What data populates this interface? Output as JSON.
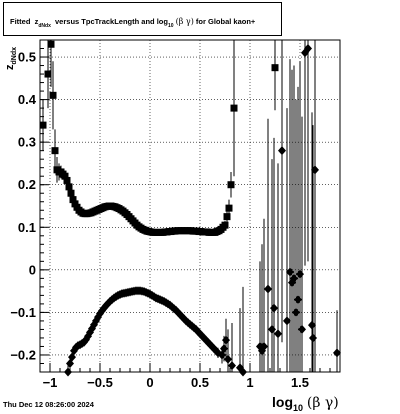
{
  "header": {
    "title_prefix": "Fitted",
    "title_z": "z",
    "title_z_sub": "dNdx",
    "title_mid": "versus TpcTrackLength and log",
    "title_log_sub": "10",
    "title_greek": "(β γ)",
    "title_suffix": "for Global kaon+"
  },
  "footer": {
    "datetime": "Thu Dec 12 08:26:00 2024"
  },
  "axes": {
    "xlabel_main": "log",
    "xlabel_sub": "10",
    "xlabel_greek": "(β γ)",
    "ylabel_main": "z",
    "ylabel_sub": "dNdx"
  },
  "chart_data": {
    "type": "scatter",
    "title": "Fitted z_dNdx versus TpcTrackLength and log10(β γ) for Global kaon+",
    "xlabel": "log10(β γ)",
    "ylabel": "z_dNdx",
    "xlim": [
      -1.1,
      1.9
    ],
    "ylim": [
      -0.24,
      0.54
    ],
    "grid": true,
    "x_ticks": [
      -1,
      -0.5,
      0,
      0.5,
      1,
      1.5
    ],
    "x_tick_labels": [
      "−1",
      "−0.5",
      "0",
      "0.5",
      "1",
      "1.5"
    ],
    "y_ticks": [
      -0.2,
      -0.1,
      0,
      0.1,
      0.2,
      0.3,
      0.4,
      0.5
    ],
    "y_tick_labels": [
      "−0.2",
      "−0.1",
      "0",
      "0.1",
      "0.2",
      "0.3",
      "0.4",
      "0.5"
    ],
    "series": [
      {
        "marker": "square",
        "color": "#000000",
        "points": [
          [
            -1.07,
            0.34,
            0.06
          ],
          [
            -1.02,
            0.46,
            0.08
          ],
          [
            -0.99,
            0.53,
            0.1
          ],
          [
            -0.97,
            0.41,
            0.08
          ],
          [
            -0.95,
            0.28,
            0.05
          ],
          [
            -0.93,
            0.235,
            0.03
          ],
          [
            -0.91,
            0.23,
            0.02
          ],
          [
            -0.89,
            0.23,
            0.015
          ],
          [
            -0.87,
            0.225,
            0.01
          ],
          [
            -0.85,
            0.22,
            0.008
          ],
          [
            -0.83,
            0.21,
            0.006
          ],
          [
            -0.81,
            0.195,
            0.005
          ],
          [
            -0.79,
            0.18,
            0.004
          ],
          [
            -0.77,
            0.165,
            0.004
          ],
          [
            -0.75,
            0.155,
            0.003
          ],
          [
            -0.73,
            0.147,
            0.003
          ],
          [
            -0.71,
            0.14,
            0.003
          ],
          [
            -0.69,
            0.136,
            0.003
          ],
          [
            -0.67,
            0.133,
            0.003
          ],
          [
            -0.65,
            0.132,
            0.003
          ],
          [
            -0.63,
            0.132,
            0.003
          ],
          [
            -0.61,
            0.133,
            0.003
          ],
          [
            -0.59,
            0.134,
            0.003
          ],
          [
            -0.57,
            0.136,
            0.003
          ],
          [
            -0.55,
            0.138,
            0.003
          ],
          [
            -0.53,
            0.14,
            0.003
          ],
          [
            -0.51,
            0.142,
            0.003
          ],
          [
            -0.49,
            0.144,
            0.003
          ],
          [
            -0.47,
            0.146,
            0.003
          ],
          [
            -0.45,
            0.148,
            0.003
          ],
          [
            -0.43,
            0.149,
            0.003
          ],
          [
            -0.41,
            0.15,
            0.003
          ],
          [
            -0.39,
            0.15,
            0.003
          ],
          [
            -0.37,
            0.149,
            0.003
          ],
          [
            -0.35,
            0.148,
            0.003
          ],
          [
            -0.33,
            0.146,
            0.003
          ],
          [
            -0.31,
            0.144,
            0.003
          ],
          [
            -0.29,
            0.141,
            0.003
          ],
          [
            -0.27,
            0.138,
            0.003
          ],
          [
            -0.25,
            0.134,
            0.003
          ],
          [
            -0.23,
            0.13,
            0.003
          ],
          [
            -0.21,
            0.125,
            0.003
          ],
          [
            -0.19,
            0.12,
            0.003
          ],
          [
            -0.17,
            0.115,
            0.003
          ],
          [
            -0.15,
            0.11,
            0.003
          ],
          [
            -0.13,
            0.105,
            0.003
          ],
          [
            -0.11,
            0.101,
            0.003
          ],
          [
            -0.09,
            0.098,
            0.003
          ],
          [
            -0.07,
            0.095,
            0.003
          ],
          [
            -0.05,
            0.093,
            0.003
          ],
          [
            -0.03,
            0.091,
            0.003
          ],
          [
            -0.01,
            0.09,
            0.003
          ],
          [
            0.01,
            0.089,
            0.003
          ],
          [
            0.03,
            0.088,
            0.003
          ],
          [
            0.05,
            0.088,
            0.003
          ],
          [
            0.07,
            0.088,
            0.003
          ],
          [
            0.09,
            0.088,
            0.003
          ],
          [
            0.11,
            0.088,
            0.003
          ],
          [
            0.13,
            0.088,
            0.003
          ],
          [
            0.15,
            0.089,
            0.003
          ],
          [
            0.17,
            0.089,
            0.003
          ],
          [
            0.19,
            0.09,
            0.003
          ],
          [
            0.21,
            0.09,
            0.003
          ],
          [
            0.23,
            0.091,
            0.003
          ],
          [
            0.25,
            0.091,
            0.003
          ],
          [
            0.27,
            0.092,
            0.003
          ],
          [
            0.29,
            0.092,
            0.003
          ],
          [
            0.31,
            0.092,
            0.003
          ],
          [
            0.33,
            0.092,
            0.003
          ],
          [
            0.35,
            0.092,
            0.003
          ],
          [
            0.37,
            0.092,
            0.003
          ],
          [
            0.39,
            0.092,
            0.003
          ],
          [
            0.41,
            0.092,
            0.003
          ],
          [
            0.43,
            0.091,
            0.003
          ],
          [
            0.45,
            0.091,
            0.003
          ],
          [
            0.47,
            0.091,
            0.003
          ],
          [
            0.49,
            0.09,
            0.003
          ],
          [
            0.51,
            0.09,
            0.003
          ],
          [
            0.53,
            0.089,
            0.003
          ],
          [
            0.55,
            0.089,
            0.003
          ],
          [
            0.57,
            0.089,
            0.003
          ],
          [
            0.59,
            0.088,
            0.003
          ],
          [
            0.61,
            0.088,
            0.003
          ],
          [
            0.63,
            0.088,
            0.003
          ],
          [
            0.65,
            0.088,
            0.003
          ],
          [
            0.67,
            0.09,
            0.004
          ],
          [
            0.69,
            0.092,
            0.004
          ],
          [
            0.71,
            0.095,
            0.005
          ],
          [
            0.73,
            0.1,
            0.006
          ],
          [
            0.75,
            0.105,
            0.01
          ],
          [
            0.77,
            0.125,
            0.015
          ],
          [
            0.79,
            0.145,
            0.02
          ],
          [
            0.81,
            0.2,
            0.03
          ],
          [
            0.84,
            0.38,
            0.16
          ],
          [
            1.25,
            0.475,
            0.1
          ]
        ]
      },
      {
        "marker": "diamond",
        "color": "#000000",
        "points": [
          [
            -0.82,
            -0.24,
            0.02
          ],
          [
            -0.8,
            -0.22,
            0.01
          ],
          [
            -0.78,
            -0.205,
            0.008
          ],
          [
            -0.76,
            -0.19,
            0.006
          ],
          [
            -0.74,
            -0.182,
            0.005
          ],
          [
            -0.72,
            -0.178,
            0.004
          ],
          [
            -0.7,
            -0.176,
            0.004
          ],
          [
            -0.68,
            -0.173,
            0.004
          ],
          [
            -0.66,
            -0.17,
            0.004
          ],
          [
            -0.64,
            -0.164,
            0.003
          ],
          [
            -0.62,
            -0.156,
            0.003
          ],
          [
            -0.6,
            -0.147,
            0.003
          ],
          [
            -0.58,
            -0.138,
            0.003
          ],
          [
            -0.56,
            -0.129,
            0.003
          ],
          [
            -0.54,
            -0.12,
            0.003
          ],
          [
            -0.52,
            -0.111,
            0.003
          ],
          [
            -0.5,
            -0.103,
            0.003
          ],
          [
            -0.48,
            -0.096,
            0.003
          ],
          [
            -0.46,
            -0.09,
            0.003
          ],
          [
            -0.44,
            -0.084,
            0.003
          ],
          [
            -0.42,
            -0.079,
            0.003
          ],
          [
            -0.4,
            -0.074,
            0.003
          ],
          [
            -0.38,
            -0.07,
            0.003
          ],
          [
            -0.36,
            -0.066,
            0.003
          ],
          [
            -0.34,
            -0.063,
            0.003
          ],
          [
            -0.32,
            -0.06,
            0.003
          ],
          [
            -0.3,
            -0.058,
            0.003
          ],
          [
            -0.28,
            -0.056,
            0.003
          ],
          [
            -0.26,
            -0.055,
            0.003
          ],
          [
            -0.24,
            -0.054,
            0.003
          ],
          [
            -0.22,
            -0.053,
            0.003
          ],
          [
            -0.2,
            -0.052,
            0.003
          ],
          [
            -0.18,
            -0.051,
            0.003
          ],
          [
            -0.16,
            -0.05,
            0.003
          ],
          [
            -0.14,
            -0.049,
            0.003
          ],
          [
            -0.12,
            -0.049,
            0.003
          ],
          [
            -0.1,
            -0.049,
            0.003
          ],
          [
            -0.08,
            -0.05,
            0.003
          ],
          [
            -0.06,
            -0.051,
            0.003
          ],
          [
            -0.04,
            -0.053,
            0.003
          ],
          [
            -0.02,
            -0.055,
            0.003
          ],
          [
            0.0,
            -0.057,
            0.003
          ],
          [
            0.02,
            -0.06,
            0.003
          ],
          [
            0.04,
            -0.063,
            0.003
          ],
          [
            0.06,
            -0.066,
            0.003
          ],
          [
            0.08,
            -0.068,
            0.003
          ],
          [
            0.1,
            -0.07,
            0.003
          ],
          [
            0.12,
            -0.072,
            0.003
          ],
          [
            0.14,
            -0.074,
            0.003
          ],
          [
            0.16,
            -0.077,
            0.003
          ],
          [
            0.18,
            -0.08,
            0.003
          ],
          [
            0.2,
            -0.083,
            0.003
          ],
          [
            0.22,
            -0.087,
            0.003
          ],
          [
            0.24,
            -0.091,
            0.003
          ],
          [
            0.26,
            -0.095,
            0.003
          ],
          [
            0.28,
            -0.1,
            0.003
          ],
          [
            0.3,
            -0.105,
            0.003
          ],
          [
            0.32,
            -0.11,
            0.003
          ],
          [
            0.34,
            -0.115,
            0.003
          ],
          [
            0.36,
            -0.12,
            0.003
          ],
          [
            0.38,
            -0.124,
            0.003
          ],
          [
            0.4,
            -0.128,
            0.003
          ],
          [
            0.42,
            -0.132,
            0.003
          ],
          [
            0.44,
            -0.136,
            0.003
          ],
          [
            0.46,
            -0.14,
            0.003
          ],
          [
            0.48,
            -0.145,
            0.003
          ],
          [
            0.5,
            -0.15,
            0.003
          ],
          [
            0.52,
            -0.155,
            0.003
          ],
          [
            0.54,
            -0.16,
            0.003
          ],
          [
            0.56,
            -0.165,
            0.004
          ],
          [
            0.58,
            -0.17,
            0.004
          ],
          [
            0.6,
            -0.175,
            0.005
          ],
          [
            0.62,
            -0.18,
            0.006
          ],
          [
            0.64,
            -0.185,
            0.008
          ],
          [
            0.66,
            -0.19,
            0.01
          ],
          [
            0.68,
            -0.195,
            0.012
          ],
          [
            0.72,
            -0.2,
            0.02
          ],
          [
            0.74,
            -0.185,
            0.03
          ],
          [
            0.76,
            -0.165,
            0.05
          ],
          [
            0.78,
            -0.21,
            0.07
          ],
          [
            0.82,
            -0.225,
            0.1
          ],
          [
            0.9,
            -0.23,
            0.14
          ],
          [
            0.93,
            -0.24,
            0.2
          ],
          [
            1.1,
            -0.18,
            0.2
          ],
          [
            1.12,
            -0.19,
            0.25
          ],
          [
            1.14,
            -0.18,
            0.3
          ],
          [
            1.18,
            -0.045,
            0.4
          ],
          [
            1.22,
            -0.14,
            0.4
          ],
          [
            1.24,
            -0.09,
            0.4
          ],
          [
            1.28,
            -0.15,
            0.4
          ],
          [
            1.32,
            0.28,
            0.45
          ],
          [
            1.37,
            -0.12,
            0.5
          ],
          [
            1.4,
            -0.005,
            0.5
          ],
          [
            1.42,
            -0.03,
            0.5
          ],
          [
            1.44,
            -0.02,
            0.5
          ],
          [
            1.46,
            -0.1,
            0.5
          ],
          [
            1.48,
            -0.07,
            0.5
          ],
          [
            1.5,
            -0.01,
            0.5
          ],
          [
            1.52,
            -0.14,
            0.5
          ],
          [
            1.55,
            0.51,
            0.5
          ],
          [
            1.58,
            0.52,
            0.5
          ],
          [
            1.62,
            -0.13,
            0.5
          ],
          [
            1.65,
            0.235,
            0.5
          ],
          [
            1.63,
            -0.16,
            0.5
          ],
          [
            1.87,
            -0.195,
            0.1
          ]
        ]
      }
    ]
  }
}
